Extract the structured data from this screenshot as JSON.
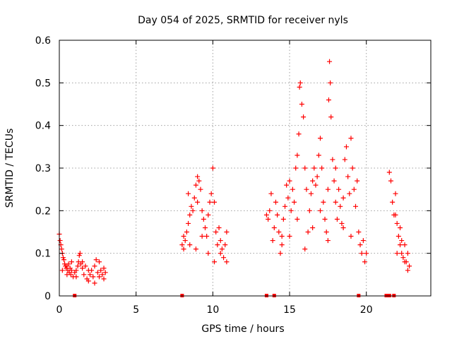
{
  "chart_data": {
    "type": "scatter",
    "title": "Day 054 of 2025, SRMTID for receiver nyls",
    "xlabel": "GPS time / hours",
    "ylabel": "SRMTID / TECUs",
    "xlim": [
      0,
      24.2
    ],
    "ylim": [
      0,
      0.6
    ],
    "xticks": [
      0,
      5,
      10,
      15,
      20
    ],
    "yticks": [
      0,
      0.1,
      0.2,
      0.3,
      0.4,
      0.5,
      0.6
    ],
    "xtick_labels": [
      "0",
      "5",
      "10",
      "15",
      "20"
    ],
    "ytick_labels": [
      "0",
      "0.1",
      "0.2",
      "0.3",
      "0.4",
      "0.5",
      "0.6"
    ],
    "grid": true,
    "marker": "+",
    "color": "#ff0000",
    "series": [
      {
        "name": "SRMTID",
        "points": [
          [
            0.0,
            0.145
          ],
          [
            0.05,
            0.13
          ],
          [
            0.1,
            0.12
          ],
          [
            0.15,
            0.11
          ],
          [
            0.2,
            0.1
          ],
          [
            0.25,
            0.09
          ],
          [
            0.3,
            0.085
          ],
          [
            0.35,
            0.075
          ],
          [
            0.4,
            0.07
          ],
          [
            0.45,
            0.065
          ],
          [
            0.5,
            0.07
          ],
          [
            0.55,
            0.06
          ],
          [
            0.6,
            0.075
          ],
          [
            0.65,
            0.055
          ],
          [
            0.7,
            0.065
          ],
          [
            0.75,
            0.05
          ],
          [
            0.8,
            0.06
          ],
          [
            0.9,
            0.045
          ],
          [
            1.0,
            0.055
          ],
          [
            1.1,
            0.06
          ],
          [
            1.2,
            0.07
          ],
          [
            1.25,
            0.08
          ],
          [
            1.3,
            0.095
          ],
          [
            1.35,
            0.1
          ],
          [
            1.4,
            0.075
          ],
          [
            1.5,
            0.065
          ],
          [
            1.6,
            0.05
          ],
          [
            1.7,
            0.07
          ],
          [
            1.8,
            0.04
          ],
          [
            1.9,
            0.06
          ],
          [
            2.0,
            0.05
          ],
          [
            2.1,
            0.06
          ],
          [
            2.2,
            0.045
          ],
          [
            2.3,
            0.07
          ],
          [
            2.4,
            0.085
          ],
          [
            2.5,
            0.055
          ],
          [
            2.6,
            0.045
          ],
          [
            2.7,
            0.06
          ],
          [
            2.8,
            0.05
          ],
          [
            2.9,
            0.065
          ],
          [
            3.0,
            0.055
          ],
          [
            0.2,
            0.06
          ],
          [
            0.5,
            0.05
          ],
          [
            0.8,
            0.08
          ],
          [
            1.1,
            0.045
          ],
          [
            1.5,
            0.08
          ],
          [
            1.9,
            0.035
          ],
          [
            2.3,
            0.03
          ],
          [
            2.6,
            0.08
          ],
          [
            2.9,
            0.04
          ],
          [
            8.0,
            0.12
          ],
          [
            8.1,
            0.11
          ],
          [
            8.2,
            0.13
          ],
          [
            8.3,
            0.15
          ],
          [
            8.4,
            0.17
          ],
          [
            8.5,
            0.19
          ],
          [
            8.6,
            0.21
          ],
          [
            8.7,
            0.2
          ],
          [
            8.8,
            0.23
          ],
          [
            8.9,
            0.26
          ],
          [
            9.0,
            0.28
          ],
          [
            9.1,
            0.27
          ],
          [
            9.2,
            0.25
          ],
          [
            9.3,
            0.2
          ],
          [
            9.4,
            0.18
          ],
          [
            9.5,
            0.16
          ],
          [
            9.6,
            0.14
          ],
          [
            9.7,
            0.19
          ],
          [
            9.8,
            0.22
          ],
          [
            9.9,
            0.24
          ],
          [
            10.0,
            0.3
          ],
          [
            10.1,
            0.22
          ],
          [
            10.2,
            0.15
          ],
          [
            10.3,
            0.12
          ],
          [
            10.4,
            0.16
          ],
          [
            10.5,
            0.13
          ],
          [
            10.6,
            0.11
          ],
          [
            10.7,
            0.09
          ],
          [
            10.8,
            0.12
          ],
          [
            10.9,
            0.15
          ],
          [
            8.1,
            0.14
          ],
          [
            8.5,
            0.12
          ],
          [
            8.9,
            0.11
          ],
          [
            9.3,
            0.14
          ],
          [
            9.7,
            0.1
          ],
          [
            10.1,
            0.08
          ],
          [
            10.5,
            0.1
          ],
          [
            10.9,
            0.08
          ],
          [
            8.4,
            0.24
          ],
          [
            9.0,
            0.22
          ],
          [
            13.5,
            0.19
          ],
          [
            13.6,
            0.18
          ],
          [
            13.7,
            0.2
          ],
          [
            13.8,
            0.24
          ],
          [
            13.9,
            0.13
          ],
          [
            14.0,
            0.16
          ],
          [
            14.1,
            0.22
          ],
          [
            14.2,
            0.19
          ],
          [
            14.3,
            0.15
          ],
          [
            14.4,
            0.1
          ],
          [
            14.5,
            0.14
          ],
          [
            14.6,
            0.18
          ],
          [
            14.7,
            0.21
          ],
          [
            14.8,
            0.26
          ],
          [
            14.9,
            0.23
          ],
          [
            15.0,
            0.27
          ],
          [
            15.1,
            0.2
          ],
          [
            15.2,
            0.25
          ],
          [
            15.3,
            0.22
          ],
          [
            15.4,
            0.3
          ],
          [
            15.5,
            0.33
          ],
          [
            15.6,
            0.38
          ],
          [
            15.65,
            0.49
          ],
          [
            15.7,
            0.5
          ],
          [
            15.8,
            0.45
          ],
          [
            15.9,
            0.42
          ],
          [
            16.0,
            0.3
          ],
          [
            16.1,
            0.25
          ],
          [
            16.2,
            0.15
          ],
          [
            16.3,
            0.2
          ],
          [
            16.4,
            0.24
          ],
          [
            16.5,
            0.27
          ],
          [
            16.6,
            0.3
          ],
          [
            16.7,
            0.26
          ],
          [
            16.8,
            0.28
          ],
          [
            16.9,
            0.33
          ],
          [
            17.0,
            0.37
          ],
          [
            17.1,
            0.3
          ],
          [
            17.2,
            0.22
          ],
          [
            17.3,
            0.18
          ],
          [
            17.4,
            0.15
          ],
          [
            17.5,
            0.25
          ],
          [
            17.55,
            0.46
          ],
          [
            17.6,
            0.55
          ],
          [
            17.65,
            0.5
          ],
          [
            17.7,
            0.42
          ],
          [
            17.8,
            0.32
          ],
          [
            17.9,
            0.27
          ],
          [
            18.0,
            0.22
          ],
          [
            18.1,
            0.18
          ],
          [
            18.2,
            0.25
          ],
          [
            18.3,
            0.21
          ],
          [
            18.4,
            0.17
          ],
          [
            18.5,
            0.23
          ],
          [
            18.6,
            0.32
          ],
          [
            18.7,
            0.35
          ],
          [
            18.8,
            0.28
          ],
          [
            18.9,
            0.24
          ],
          [
            19.0,
            0.37
          ],
          [
            19.1,
            0.3
          ],
          [
            19.2,
            0.25
          ],
          [
            19.3,
            0.21
          ],
          [
            19.4,
            0.27
          ],
          [
            19.5,
            0.15
          ],
          [
            19.6,
            0.12
          ],
          [
            19.7,
            0.1
          ],
          [
            19.8,
            0.13
          ],
          [
            19.9,
            0.08
          ],
          [
            20.0,
            0.1
          ],
          [
            14.5,
            0.12
          ],
          [
            15.0,
            0.14
          ],
          [
            15.5,
            0.18
          ],
          [
            16.0,
            0.11
          ],
          [
            16.5,
            0.16
          ],
          [
            17.0,
            0.2
          ],
          [
            17.5,
            0.13
          ],
          [
            18.0,
            0.3
          ],
          [
            18.5,
            0.16
          ],
          [
            19.0,
            0.14
          ],
          [
            21.5,
            0.29
          ],
          [
            21.6,
            0.27
          ],
          [
            21.7,
            0.22
          ],
          [
            21.8,
            0.19
          ],
          [
            21.9,
            0.24
          ],
          [
            22.0,
            0.17
          ],
          [
            22.1,
            0.14
          ],
          [
            22.2,
            0.12
          ],
          [
            22.3,
            0.1
          ],
          [
            22.4,
            0.09
          ],
          [
            22.5,
            0.12
          ],
          [
            22.6,
            0.08
          ],
          [
            22.7,
            0.1
          ],
          [
            22.8,
            0.07
          ],
          [
            22.0,
            0.1
          ],
          [
            22.3,
            0.13
          ],
          [
            22.5,
            0.08
          ],
          [
            22.7,
            0.06
          ],
          [
            21.9,
            0.19
          ],
          [
            22.2,
            0.16
          ]
        ]
      }
    ],
    "gap_markers_x": [
      1.0,
      8.0,
      13.5,
      14.0,
      19.5,
      21.3,
      21.5,
      21.8
    ]
  }
}
